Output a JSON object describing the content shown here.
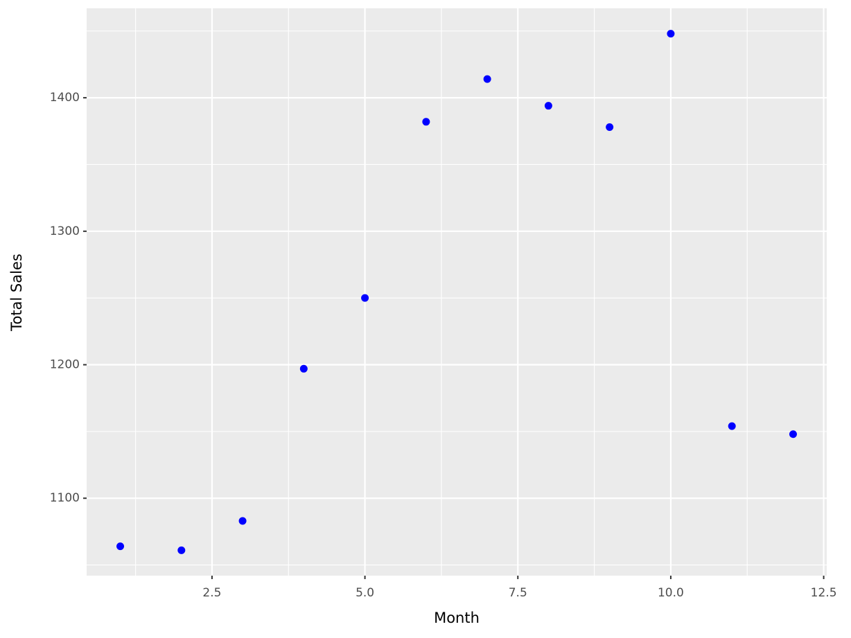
{
  "chart_data": {
    "type": "scatter",
    "x_label": "Month",
    "y_label": "Total Sales",
    "x": [
      1,
      2,
      3,
      4,
      5,
      6,
      7,
      8,
      9,
      10,
      11,
      12
    ],
    "series": [
      {
        "color": "#0000ff",
        "values": [
          1064,
          1061,
          1083,
          1197,
          1250,
          1382,
          1414,
          1394,
          1378,
          1448,
          1154,
          1148
        ]
      }
    ],
    "xlim": [
      0.45,
      12.55
    ],
    "ylim": [
      1042,
      1467
    ],
    "xticks": [
      2.5,
      {
        "value": 5,
        "label": "5.0"
      },
      7.5,
      {
        "value": 10,
        "label": "10.0"
      },
      12.5
    ],
    "yticks": [
      1100,
      1200,
      1300,
      1400
    ],
    "grid": true
  }
}
